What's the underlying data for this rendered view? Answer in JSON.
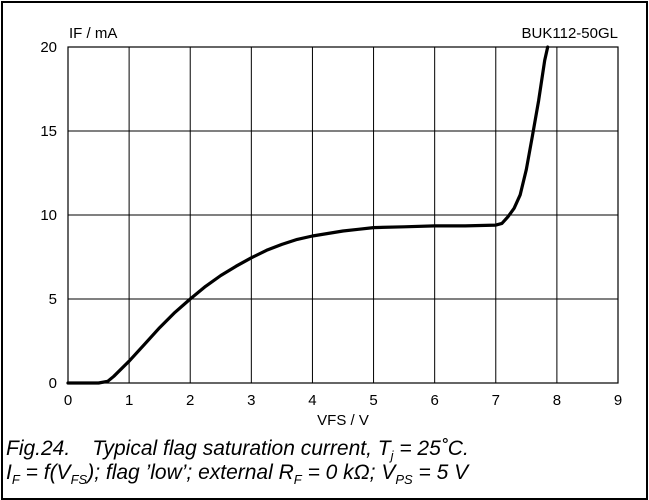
{
  "chart_data": {
    "type": "line",
    "title": "",
    "device_label": "BUK112-50GL",
    "xlabel": "VFS / V",
    "ylabel": "IF / mA",
    "xlim": [
      0,
      9
    ],
    "ylim": [
      0,
      20
    ],
    "xticks": [
      "0",
      "1",
      "2",
      "3",
      "4",
      "5",
      "6",
      "7",
      "8",
      "9"
    ],
    "yticks": [
      "0",
      "5",
      "10",
      "15",
      "20"
    ],
    "grid": true,
    "series": [
      {
        "x": [
          0,
          0.5,
          0.65,
          0.75,
          1.0,
          1.25,
          1.5,
          1.75,
          2.0,
          2.25,
          2.5,
          2.75,
          3.0,
          3.25,
          3.5,
          3.75,
          4.0,
          4.25,
          4.5,
          4.75,
          5.0,
          5.5,
          6.0,
          6.5,
          7.0,
          7.1,
          7.2,
          7.3,
          7.4,
          7.5,
          7.6,
          7.7,
          7.8,
          7.85
        ],
        "y": [
          0,
          0,
          0.1,
          0.4,
          1.3,
          2.3,
          3.3,
          4.2,
          5.0,
          5.75,
          6.4,
          6.95,
          7.45,
          7.9,
          8.25,
          8.55,
          8.75,
          8.9,
          9.05,
          9.15,
          9.25,
          9.3,
          9.35,
          9.35,
          9.4,
          9.5,
          9.9,
          10.4,
          11.2,
          12.7,
          14.7,
          16.8,
          19.2,
          20.0
        ]
      }
    ]
  },
  "caption": {
    "fig_label": "Fig.24.",
    "line1": "Typical flag saturation current, T",
    "line1_sub": "j",
    "line1_tail": " = 25˚C.",
    "l2_a": "I",
    "l2_a_sub": "F",
    "l2_b": " = f(V",
    "l2_b_sub": "FS",
    "l2_c": "); flag ’low’; external R",
    "l2_c_sub": "F",
    "l2_d": " = 0 kΩ; V",
    "l2_d_sub": "PS",
    "l2_e": " = 5 V"
  }
}
